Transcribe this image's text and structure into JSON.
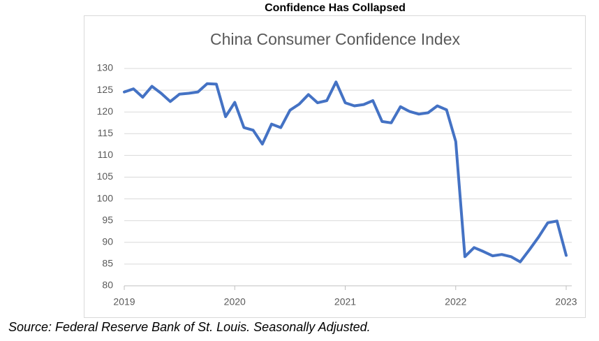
{
  "heading": "Confidence Has Collapsed",
  "source": "Source: Federal Reserve Bank of St. Louis. Seasonally Adjusted.",
  "chart_data": {
    "type": "line",
    "title": "China Consumer Confidence Index",
    "categories": [
      "2019",
      null,
      null,
      null,
      null,
      null,
      null,
      null,
      null,
      null,
      null,
      null,
      "2020",
      null,
      null,
      null,
      null,
      null,
      null,
      null,
      null,
      null,
      null,
      null,
      "2021",
      null,
      null,
      null,
      null,
      null,
      null,
      null,
      null,
      null,
      null,
      null,
      "2022",
      null,
      null,
      null,
      null,
      null,
      null,
      null,
      null,
      null,
      null,
      null,
      "2023"
    ],
    "series": [
      {
        "name": "China Consumer Confidence Index",
        "color": "#4472c4",
        "values": [
          124.6,
          125.3,
          123.4,
          125.9,
          124.3,
          122.4,
          124.1,
          124.3,
          124.6,
          126.5,
          126.4,
          118.9,
          122.2,
          116.4,
          115.8,
          112.6,
          117.2,
          116.4,
          120.4,
          121.8,
          124.0,
          122.1,
          122.6,
          126.9,
          122.1,
          121.4,
          121.7,
          122.6,
          117.8,
          117.5,
          121.2,
          120.1,
          119.5,
          119.8,
          121.4,
          120.5,
          113.2,
          86.7,
          88.8,
          87.9,
          86.9,
          87.2,
          86.7,
          85.5,
          88.3,
          91.2,
          94.5,
          94.9,
          87.0
        ]
      }
    ],
    "ylim": [
      80,
      130
    ],
    "yticks": [
      80,
      85,
      90,
      95,
      100,
      105,
      110,
      115,
      120,
      125,
      130
    ],
    "grid": true
  }
}
